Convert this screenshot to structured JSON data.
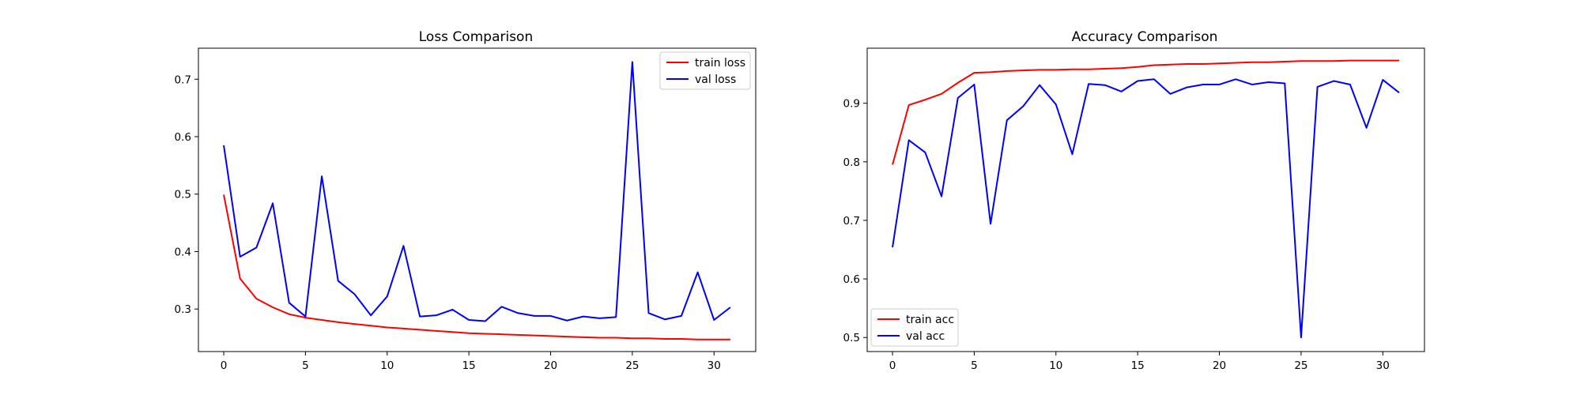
{
  "chart_data": [
    {
      "type": "line",
      "title": "Loss Comparison",
      "xlabel": "",
      "ylabel": "",
      "xlim": [
        -1.55,
        32.55
      ],
      "ylim": [
        0.226,
        0.754
      ],
      "xticks": [
        0,
        5,
        10,
        15,
        20,
        25,
        30
      ],
      "yticks": [
        0.3,
        0.4,
        0.5,
        0.6,
        0.7
      ],
      "legend_position": "top-right",
      "grid": false,
      "x": [
        0,
        1,
        2,
        3,
        4,
        5,
        6,
        7,
        8,
        9,
        10,
        11,
        12,
        13,
        14,
        15,
        16,
        17,
        18,
        19,
        20,
        21,
        22,
        23,
        24,
        25,
        26,
        27,
        28,
        29,
        30,
        31
      ],
      "series": [
        {
          "name": "train loss",
          "color": "#ff0000",
          "values": [
            0.499,
            0.353,
            0.318,
            0.303,
            0.291,
            0.285,
            0.281,
            0.277,
            0.274,
            0.271,
            0.268,
            0.266,
            0.264,
            0.262,
            0.26,
            0.258,
            0.257,
            0.256,
            0.255,
            0.254,
            0.253,
            0.252,
            0.251,
            0.25,
            0.25,
            0.249,
            0.249,
            0.248,
            0.248,
            0.247,
            0.247,
            0.247
          ]
        },
        {
          "name": "val loss",
          "color": "#0000ff",
          "values": [
            0.585,
            0.391,
            0.407,
            0.484,
            0.311,
            0.287,
            0.531,
            0.349,
            0.326,
            0.289,
            0.322,
            0.41,
            0.287,
            0.289,
            0.299,
            0.281,
            0.279,
            0.304,
            0.293,
            0.288,
            0.288,
            0.28,
            0.287,
            0.284,
            0.286,
            0.73,
            0.293,
            0.282,
            0.288,
            0.364,
            0.281,
            0.303
          ]
        }
      ]
    },
    {
      "type": "line",
      "title": "Accuracy Comparison",
      "xlabel": "",
      "ylabel": "",
      "xlim": [
        -1.55,
        32.55
      ],
      "ylim": [
        0.476,
        0.994
      ],
      "xticks": [
        0,
        5,
        10,
        15,
        20,
        25,
        30
      ],
      "yticks": [
        0.5,
        0.6,
        0.7,
        0.8,
        0.9
      ],
      "legend_position": "bottom-left",
      "grid": false,
      "x": [
        0,
        1,
        2,
        3,
        4,
        5,
        6,
        7,
        8,
        9,
        10,
        11,
        12,
        13,
        14,
        15,
        16,
        17,
        18,
        19,
        20,
        21,
        22,
        23,
        24,
        25,
        26,
        27,
        28,
        29,
        30,
        31
      ],
      "series": [
        {
          "name": "train acc",
          "color": "#ff0000",
          "values": [
            0.795,
            0.897,
            0.906,
            0.916,
            0.935,
            0.952,
            0.953,
            0.955,
            0.956,
            0.957,
            0.957,
            0.958,
            0.958,
            0.959,
            0.96,
            0.962,
            0.965,
            0.966,
            0.967,
            0.967,
            0.968,
            0.969,
            0.97,
            0.97,
            0.971,
            0.972,
            0.972,
            0.972,
            0.973,
            0.973,
            0.973,
            0.973
          ]
        },
        {
          "name": "val acc",
          "color": "#0000ff",
          "values": [
            0.654,
            0.837,
            0.816,
            0.741,
            0.909,
            0.932,
            0.694,
            0.871,
            0.895,
            0.931,
            0.898,
            0.813,
            0.933,
            0.931,
            0.92,
            0.938,
            0.941,
            0.916,
            0.927,
            0.932,
            0.932,
            0.941,
            0.932,
            0.936,
            0.934,
            0.5,
            0.928,
            0.938,
            0.932,
            0.858,
            0.94,
            0.918
          ]
        }
      ]
    }
  ]
}
